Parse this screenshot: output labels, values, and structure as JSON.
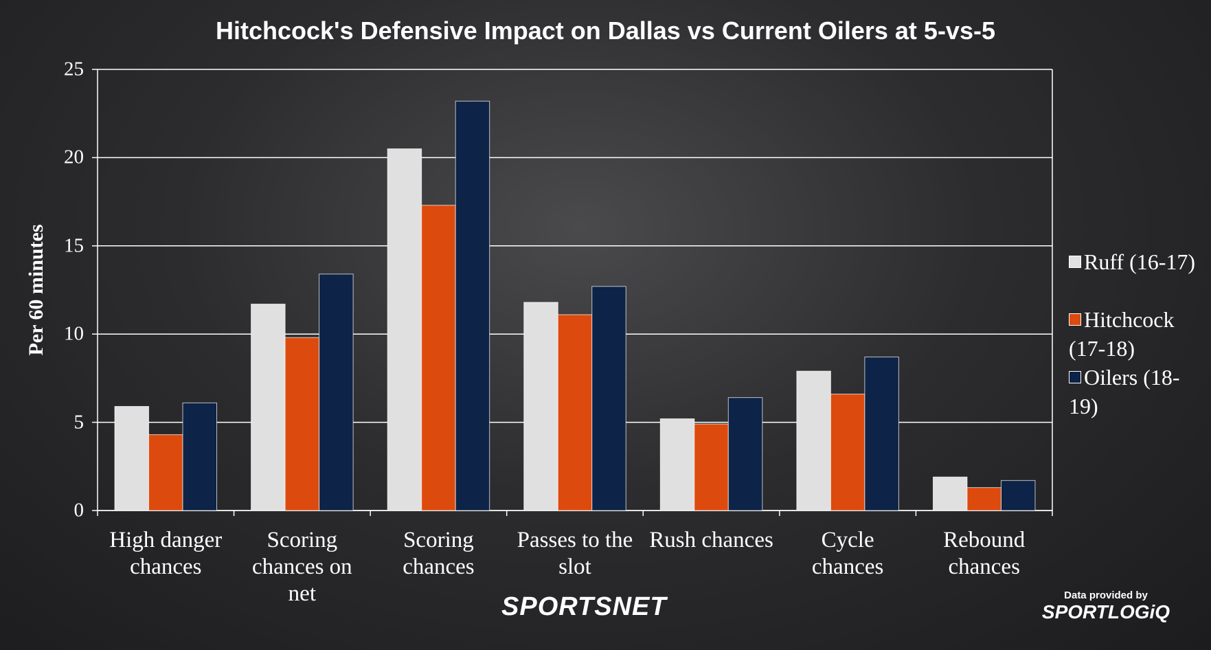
{
  "chart_data": {
    "type": "bar",
    "title": "Hitchcock's Defensive Impact on Dallas vs Current Oilers at 5-vs-5",
    "y_label": "Per 60 minutes",
    "categories": [
      "High danger chances",
      "Scoring chances on net",
      "Scoring chances",
      "Passes to the slot",
      "Rush chances",
      "Cycle chances",
      "Rebound chances"
    ],
    "series": [
      {
        "name": "Ruff (16-17)",
        "color": "#e0e0e0",
        "values": [
          5.9,
          11.7,
          20.5,
          11.8,
          5.2,
          7.9,
          1.9
        ]
      },
      {
        "name": "Hitchcock (17-18)",
        "color": "#dd4a0e",
        "values": [
          4.3,
          9.8,
          17.3,
          11.1,
          4.9,
          6.6,
          1.3
        ]
      },
      {
        "name": "Oilers (18-19)",
        "color": "#0d2347",
        "values": [
          6.1,
          13.4,
          23.2,
          12.7,
          6.4,
          8.7,
          1.7
        ]
      }
    ],
    "ylim": [
      0,
      25
    ],
    "yticks": [
      0,
      5,
      10,
      15,
      20,
      25
    ],
    "grid": true,
    "legend": "right"
  },
  "logos": {
    "broadcaster": "SPORTSNET",
    "credit": "Data provided by",
    "provider": "SPORTLOGiQ"
  }
}
